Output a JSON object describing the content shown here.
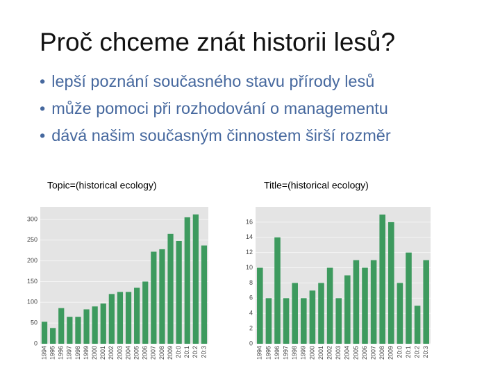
{
  "title": "Proč chceme znát historii lesů?",
  "bullets": [
    "lepší poznání současného stavu přírody lesů",
    "může pomoci při rozhodování o managementu",
    "dává našim současným činnostem širší rozměr"
  ],
  "chart_data": [
    {
      "type": "bar",
      "title": "Topic=(historical ecology)",
      "categories": [
        "1994",
        "1995",
        "1996",
        "1997",
        "1998",
        "1999",
        "2000",
        "2001",
        "2002",
        "2003",
        "2004",
        "2005",
        "2006",
        "2007",
        "2008",
        "2009",
        "20:0",
        "20:1",
        "20:2",
        "20:3"
      ],
      "values": [
        53,
        38,
        86,
        65,
        65,
        83,
        90,
        97,
        120,
        125,
        125,
        135,
        150,
        222,
        228,
        265,
        248,
        305,
        312,
        237
      ],
      "color": "#3d9a5e",
      "ylim": [
        0,
        330
      ],
      "yticks": [
        0,
        50,
        100,
        150,
        200,
        250,
        300
      ],
      "grid": true
    },
    {
      "type": "bar",
      "title": "Title=(historical ecology)",
      "categories": [
        "1994",
        "1995",
        "1996",
        "1997",
        "1998",
        "1999",
        "2000",
        "2001",
        "2002",
        "2003",
        "2004",
        "2005",
        "2006",
        "2007",
        "2008",
        "2009",
        "20:0",
        "20:1",
        "20:2",
        "20:3"
      ],
      "values": [
        10,
        6,
        14,
        6,
        8,
        6,
        7,
        8,
        10,
        6,
        9,
        11,
        10,
        11,
        17,
        16,
        8,
        12,
        5,
        11
      ],
      "color": "#3d9a5e",
      "ylim": [
        0,
        18
      ],
      "yticks": [
        0,
        2,
        4,
        6,
        8,
        10,
        12,
        14,
        16
      ],
      "grid": true
    }
  ]
}
